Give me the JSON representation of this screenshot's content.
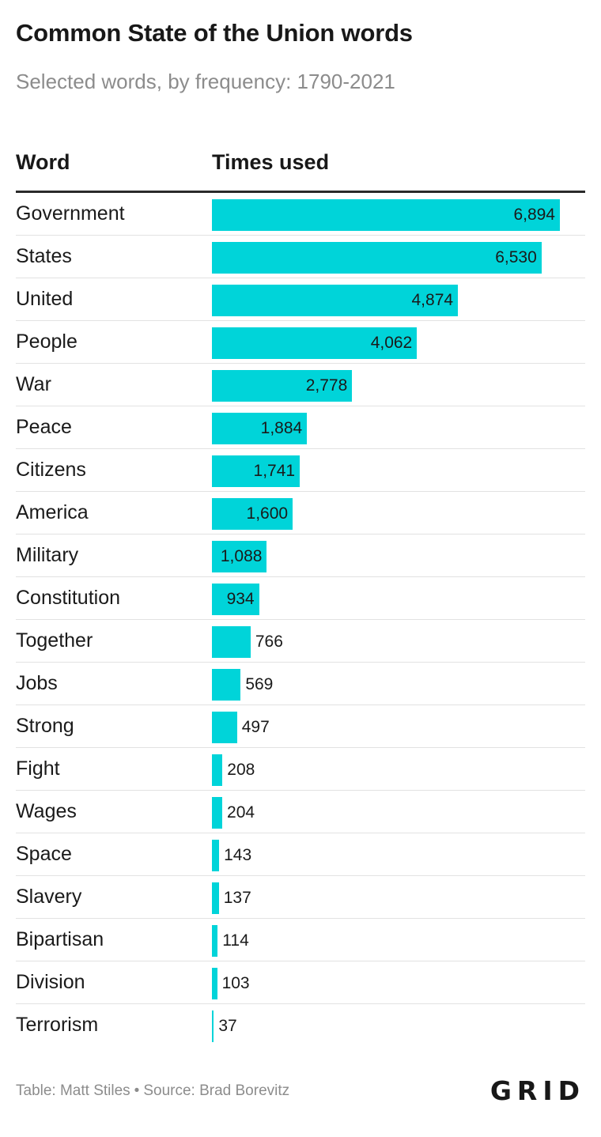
{
  "title": "Common State of the Union words",
  "subtitle": "Selected words, by frequency: 1790-2021",
  "table_header": {
    "word": "Word",
    "times_used": "Times used"
  },
  "footer": {
    "credit": "Table: Matt Stiles",
    "separator": "•",
    "source": "Source: Brad Borevitz"
  },
  "logo": "GRID",
  "colors": {
    "bar": "#00d4d9",
    "text": "#1a1a1a",
    "muted": "#8c8c8c"
  },
  "chart_data": {
    "type": "table",
    "title": "Common State of the Union words",
    "subtitle": "Selected words, by frequency: 1790-2021",
    "columns": [
      "Word",
      "Times used"
    ],
    "max_value": 6894,
    "rows": [
      {
        "word": "Government",
        "value": 6894,
        "label": "6,894"
      },
      {
        "word": "States",
        "value": 6530,
        "label": "6,530"
      },
      {
        "word": "United",
        "value": 4874,
        "label": "4,874"
      },
      {
        "word": "People",
        "value": 4062,
        "label": "4,062"
      },
      {
        "word": "War",
        "value": 2778,
        "label": "2,778"
      },
      {
        "word": "Peace",
        "value": 1884,
        "label": "1,884"
      },
      {
        "word": "Citizens",
        "value": 1741,
        "label": "1,741"
      },
      {
        "word": "America",
        "value": 1600,
        "label": "1,600"
      },
      {
        "word": "Military",
        "value": 1088,
        "label": "1,088"
      },
      {
        "word": "Constitution",
        "value": 934,
        "label": "934"
      },
      {
        "word": "Together",
        "value": 766,
        "label": "766"
      },
      {
        "word": "Jobs",
        "value": 569,
        "label": "569"
      },
      {
        "word": "Strong",
        "value": 497,
        "label": "497"
      },
      {
        "word": "Fight",
        "value": 208,
        "label": "208"
      },
      {
        "word": "Wages",
        "value": 204,
        "label": "204"
      },
      {
        "word": "Space",
        "value": 143,
        "label": "143"
      },
      {
        "word": "Slavery",
        "value": 137,
        "label": "137"
      },
      {
        "word": "Bipartisan",
        "value": 114,
        "label": "114"
      },
      {
        "word": "Division",
        "value": 103,
        "label": "103"
      },
      {
        "word": "Terrorism",
        "value": 37,
        "label": "37"
      }
    ]
  }
}
